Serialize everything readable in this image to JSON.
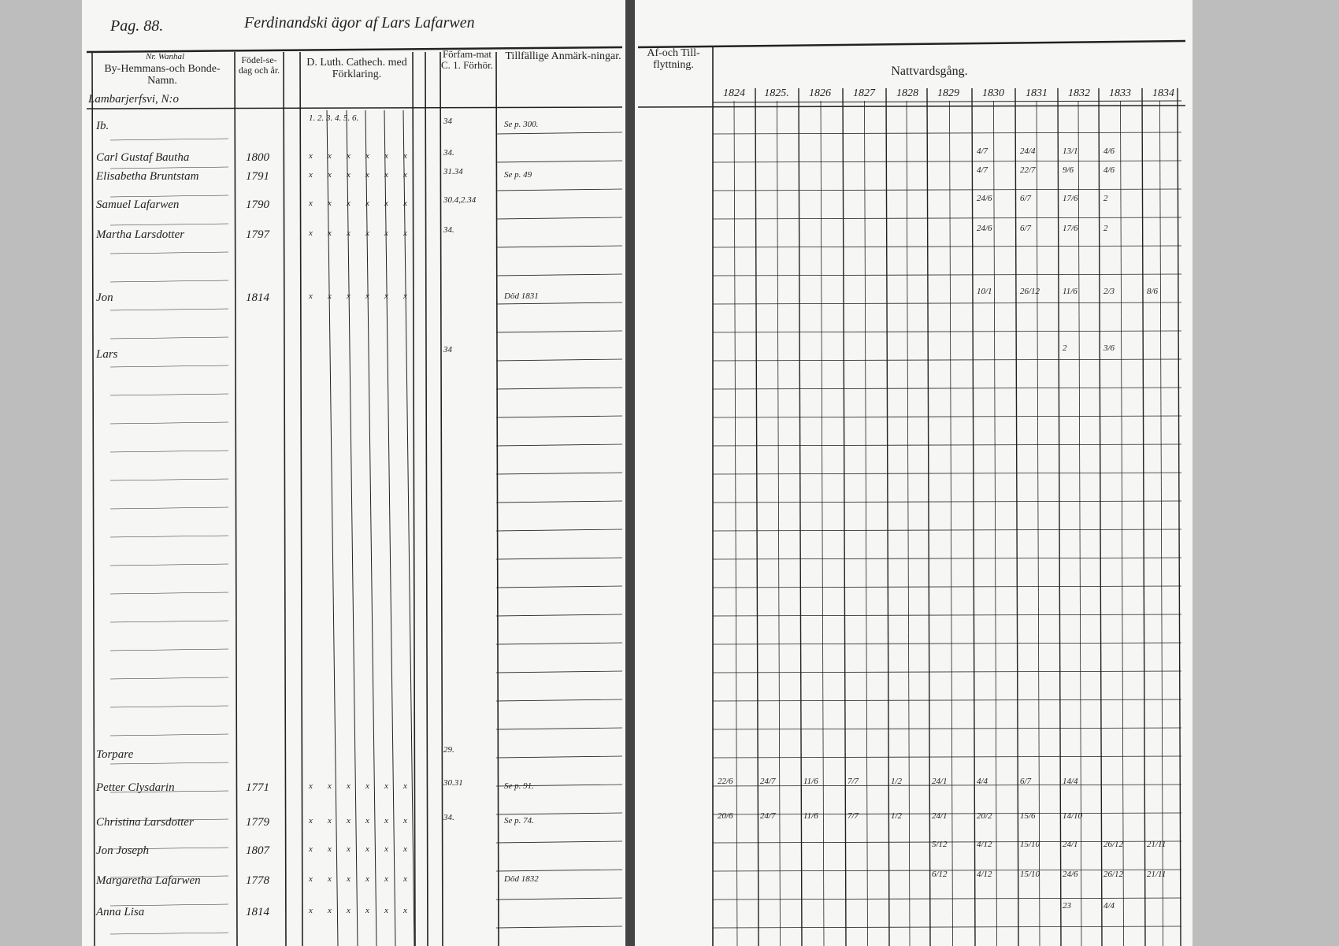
{
  "page_label": "Pag. 88.",
  "heading": "Ferdinandski ägor af Lars Lafarwen",
  "left_headers": {
    "name": "By-Hemmans-och Bonde-Namn.",
    "name_annotation": "Nr. Wanhal",
    "place": "Lambarjerfsvi, N:o",
    "birth": "Födel-se-dag och år.",
    "catechism": "D. Luth. Cathech. med Förklaring.",
    "catechism_parts": "1. 2. 3. 4. 5. 6.",
    "confirmed": "Förfam-mat C. 1. Förhör.",
    "remarks": "Tillfällige Anmärk-ningar."
  },
  "right_headers": {
    "moving": "Af-och Till-flyttning.",
    "communion": "Nattvardsgång.",
    "years": [
      "1824",
      "1825.",
      "1826",
      "1827",
      "1828",
      "1829",
      "1830",
      "1831",
      "1832",
      "1833",
      "1834"
    ]
  },
  "entries": [
    {
      "name": "Ib.",
      "birth": "",
      "exam": "34",
      "remark": "Se p. 300."
    },
    {
      "name": "Carl Gustaf Bautha",
      "birth": "1800",
      "exam": "34.",
      "remark": ""
    },
    {
      "name": "Elisabetha Bruntstam",
      "birth": "1791",
      "exam": "31.34",
      "remark": "Se p. 49"
    },
    {
      "name": "Samuel Lafarwen",
      "birth": "1790",
      "exam": "30.4,2.34",
      "remark": ""
    },
    {
      "name": "Martha Larsdotter",
      "birth": "1797",
      "exam": "34.",
      "remark": ""
    },
    {
      "name": "Jon",
      "birth": "1814",
      "exam": "",
      "remark": "Död 1831"
    },
    {
      "name": "Lars",
      "birth": "",
      "exam": "34",
      "remark": ""
    },
    {
      "name": "Torpare",
      "birth": "",
      "exam": "29.",
      "remark": ""
    },
    {
      "name": "Petter Clysdarin",
      "birth": "1771",
      "exam": "30.31",
      "remark": "Se p. 91."
    },
    {
      "name": "Christina Larsdotter",
      "birth": "1779",
      "exam": "34.",
      "remark": "Se p. 74."
    },
    {
      "name": "Jon Joseph",
      "birth": "1807",
      "exam": "",
      "remark": ""
    },
    {
      "name": "Margaretha Lafarwen",
      "birth": "1778",
      "exam": "",
      "remark": "Död 1832"
    },
    {
      "name": "Anna Lisa",
      "birth": "1814",
      "exam": "",
      "remark": ""
    }
  ],
  "communion_marks": [
    {
      "row": "Carl Gustaf Bautha",
      "values": [
        "4/7",
        "24/4",
        "13/1",
        "4/6"
      ]
    },
    {
      "row": "Elisabetha Bruntstam",
      "values": [
        "4/7",
        "22/7",
        "9/6",
        "4/6"
      ]
    },
    {
      "row": "Samuel Lafarwen",
      "values": [
        "24/6",
        "6/7",
        "17/6",
        "2"
      ]
    },
    {
      "row": "Martha Larsdotter",
      "values": [
        "24/6",
        "6/7",
        "17/6",
        "2"
      ]
    },
    {
      "row": "Jon",
      "values": [
        "10/1",
        "26/12",
        "11/6",
        "2/3",
        "8/6"
      ]
    },
    {
      "row": "Lars",
      "values": [
        "2",
        "3/6"
      ]
    },
    {
      "row": "Petter Clysdarin",
      "values": [
        "22/6",
        "24/7",
        "11/6",
        "7/7",
        "1/2",
        "24/1",
        "4/4",
        "6/7",
        "14/4"
      ]
    },
    {
      "row": "Christina Larsdotter",
      "values": [
        "20/6",
        "24/7",
        "11/6",
        "7/7",
        "1/2",
        "24/1",
        "20/2",
        "15/6",
        "14/10"
      ]
    },
    {
      "row": "Jon Joseph",
      "values": [
        "5/12",
        "4/12",
        "15/10",
        "24/1",
        "26/12",
        "21/11"
      ]
    },
    {
      "row": "Margaretha Lafarwen",
      "values": [
        "6/12",
        "4/12",
        "15/10",
        "24/6",
        "26/12",
        "21/11"
      ]
    },
    {
      "row": "Anna Lisa",
      "values": [
        "23",
        "4/4"
      ]
    }
  ]
}
